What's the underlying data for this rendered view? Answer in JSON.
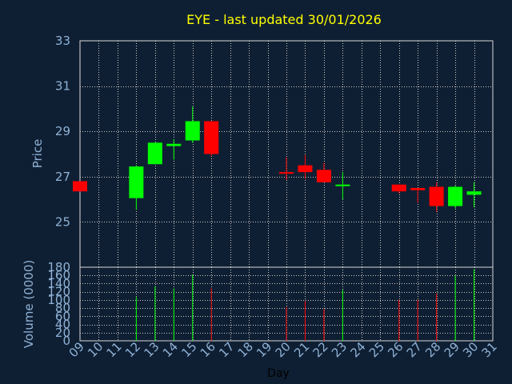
{
  "chart_data": [
    {
      "type": "candlestick",
      "title": "EYE - last updated 30/01/2026",
      "ylabel": "Price",
      "ylim": [
        23,
        33
      ],
      "yticks": [
        25,
        27,
        29,
        31,
        33
      ],
      "xlim": [
        9,
        31
      ],
      "grid": true,
      "up_color": "#00ff00",
      "down_color": "#ff0000",
      "candles": [
        {
          "day": 9,
          "open": 26.8,
          "high": 26.8,
          "low": 26.35,
          "close": 26.35
        },
        {
          "day": 12,
          "open": 26.05,
          "high": 27.5,
          "low": 25.55,
          "close": 27.45
        },
        {
          "day": 13,
          "open": 27.55,
          "high": 28.5,
          "low": 27.55,
          "close": 28.5
        },
        {
          "day": 14,
          "open": 28.35,
          "high": 28.65,
          "low": 27.75,
          "close": 28.45
        },
        {
          "day": 15,
          "open": 28.6,
          "high": 30.1,
          "low": 28.5,
          "close": 29.45
        },
        {
          "day": 16,
          "open": 29.45,
          "high": 29.45,
          "low": 27.9,
          "close": 28.0
        },
        {
          "day": 20,
          "open": 27.2,
          "high": 27.85,
          "low": 26.85,
          "close": 27.15
        },
        {
          "day": 21,
          "open": 27.5,
          "high": 27.95,
          "low": 26.9,
          "close": 27.2
        },
        {
          "day": 22,
          "open": 27.3,
          "high": 27.6,
          "low": 26.75,
          "close": 26.75
        },
        {
          "day": 23,
          "open": 26.6,
          "high": 27.2,
          "low": 26.0,
          "close": 26.65
        },
        {
          "day": 26,
          "open": 26.65,
          "high": 26.65,
          "low": 26.25,
          "close": 26.35
        },
        {
          "day": 27,
          "open": 26.5,
          "high": 26.5,
          "low": 25.85,
          "close": 26.4
        },
        {
          "day": 28,
          "open": 26.55,
          "high": 26.75,
          "low": 25.45,
          "close": 25.7
        },
        {
          "day": 29,
          "open": 25.7,
          "high": 26.6,
          "low": 25.6,
          "close": 26.55
        },
        {
          "day": 30,
          "open": 26.2,
          "high": 26.75,
          "low": 25.65,
          "close": 26.35
        }
      ]
    },
    {
      "type": "bar",
      "ylabel": "Volume (0000)",
      "xlabel": "Day",
      "ylim": [
        0,
        180
      ],
      "yticks": [
        0,
        20,
        40,
        60,
        80,
        100,
        120,
        140,
        160,
        180
      ],
      "xticks": [
        "09",
        "10",
        "11",
        "12",
        "13",
        "14",
        "15",
        "16",
        "17",
        "18",
        "19",
        "20",
        "21",
        "22",
        "23",
        "24",
        "25",
        "26",
        "27",
        "28",
        "29",
        "30",
        "31"
      ],
      "bars": [
        {
          "day": 12,
          "value": 107,
          "direction": "up"
        },
        {
          "day": 13,
          "value": 133,
          "direction": "up"
        },
        {
          "day": 14,
          "value": 128,
          "direction": "up"
        },
        {
          "day": 15,
          "value": 162,
          "direction": "up"
        },
        {
          "day": 16,
          "value": 128,
          "direction": "down"
        },
        {
          "day": 20,
          "value": 83,
          "direction": "down"
        },
        {
          "day": 21,
          "value": 97,
          "direction": "down"
        },
        {
          "day": 22,
          "value": 78,
          "direction": "down"
        },
        {
          "day": 23,
          "value": 125,
          "direction": "up"
        },
        {
          "day": 26,
          "value": 100,
          "direction": "down"
        },
        {
          "day": 27,
          "value": 100,
          "direction": "down"
        },
        {
          "day": 28,
          "value": 115,
          "direction": "down"
        },
        {
          "day": 29,
          "value": 160,
          "direction": "up"
        },
        {
          "day": 30,
          "value": 175,
          "direction": "up"
        }
      ]
    }
  ]
}
